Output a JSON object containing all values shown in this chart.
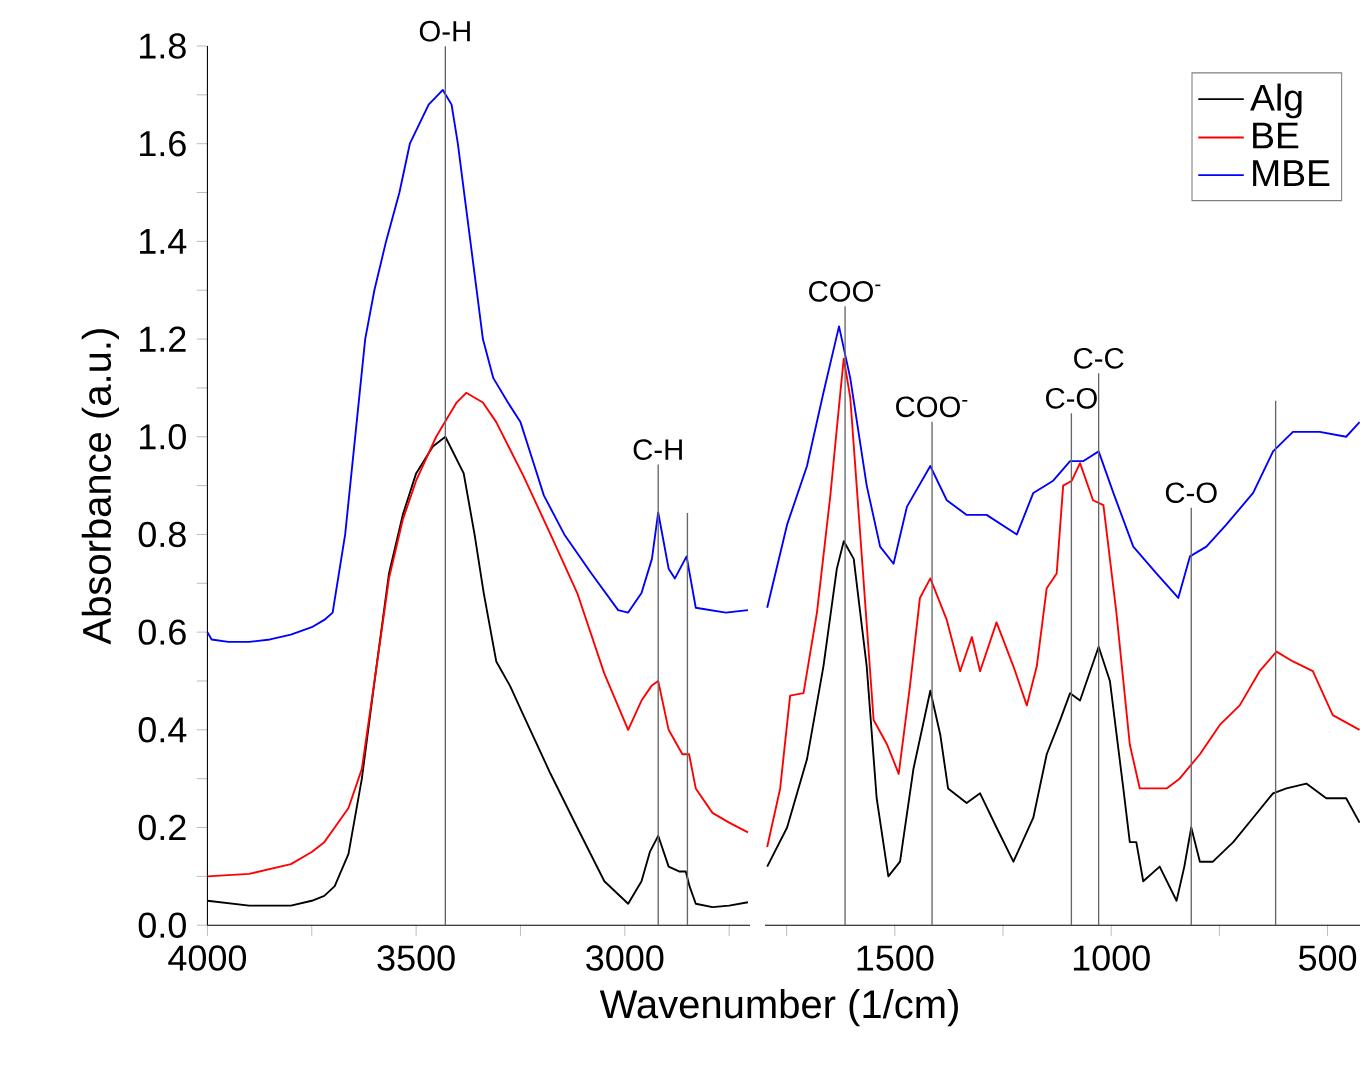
{
  "chart_data": [
    {
      "type": "line",
      "ylabel": "Absorbance (a.u.)",
      "xlabel": "Wavenumber (1/cm)",
      "xlim": [
        4000,
        2700
      ],
      "ylim": [
        0,
        1.8
      ],
      "xticks": [
        4000,
        {
          "value": 3750,
          "label": null
        },
        3500,
        {
          "value": 3250,
          "label": null
        },
        3000,
        {
          "value": 2750,
          "label": null
        }
      ],
      "yticks": [
        {
          "value": 0,
          "label": "0.0"
        },
        {
          "value": 0.1,
          "label": null
        },
        0.2,
        {
          "value": 0.3,
          "label": null
        },
        0.4,
        {
          "value": 0.5,
          "label": null
        },
        0.6,
        {
          "value": 0.7,
          "label": null
        },
        0.8,
        {
          "value": 0.9,
          "label": null
        },
        {
          "value": 1,
          "label": "1.0"
        },
        {
          "value": 1.1,
          "label": null
        },
        1.2,
        {
          "value": 1.3,
          "label": null
        },
        1.4,
        {
          "value": 1.5,
          "label": null
        },
        1.6,
        {
          "value": 1.7,
          "label": null
        },
        1.8
      ],
      "marker": "none",
      "grid": false,
      "legend": false,
      "series": [
        {
          "color": "#000000",
          "x": [
            4000,
            3950,
            3900,
            3850,
            3800,
            3750,
            3720,
            3695,
            3662,
            3630,
            3598,
            3565,
            3532,
            3500,
            3460,
            3430,
            3386,
            3360,
            3338,
            3308,
            3275,
            3243,
            3178,
            3114,
            3049,
            2992,
            2960,
            2940,
            2920,
            2895,
            2870,
            2854,
            2845,
            2830,
            2790,
            2750,
            2705
          ],
          "values": [
            0.05,
            0.045,
            0.04,
            0.04,
            0.04,
            0.05,
            0.06,
            0.08,
            0.146,
            0.3,
            0.51,
            0.72,
            0.84,
            0.925,
            0.98,
            1.0,
            0.925,
            0.8,
            0.68,
            0.54,
            0.49,
            0.43,
            0.31,
            0.2,
            0.09,
            0.044,
            0.09,
            0.15,
            0.183,
            0.12,
            0.11,
            0.11,
            0.08,
            0.044,
            0.037,
            0.04,
            0.047
          ]
        },
        {
          "color": "#ff0000",
          "x": [
            4000,
            3900,
            3800,
            3750,
            3720,
            3695,
            3662,
            3630,
            3598,
            3565,
            3532,
            3500,
            3452,
            3403,
            3380,
            3340,
            3308,
            3243,
            3178,
            3114,
            3049,
            2992,
            2960,
            2936,
            2920,
            2895,
            2862,
            2846,
            2830,
            2790,
            2750,
            2705
          ],
          "values": [
            0.1,
            0.105,
            0.125,
            0.15,
            0.17,
            0.2,
            0.24,
            0.32,
            0.51,
            0.71,
            0.83,
            0.91,
            1.0,
            1.07,
            1.09,
            1.07,
            1.03,
            0.92,
            0.8,
            0.68,
            0.515,
            0.4,
            0.46,
            0.49,
            0.5,
            0.4,
            0.35,
            0.35,
            0.28,
            0.23,
            0.21,
            0.19
          ]
        },
        {
          "color": "#0000ff",
          "x": [
            4000,
            3990,
            3950,
            3900,
            3850,
            3800,
            3750,
            3720,
            3700,
            3670,
            3646,
            3622,
            3600,
            3572,
            3540,
            3515,
            3470,
            3436,
            3415,
            3400,
            3385,
            3370,
            3355,
            3340,
            3315,
            3280,
            3250,
            3220,
            3194,
            3145,
            3080,
            3016,
            2992,
            2960,
            2935,
            2920,
            2895,
            2880,
            2852,
            2830,
            2758,
            2705
          ],
          "values": [
            0.6,
            0.585,
            0.58,
            0.58,
            0.585,
            0.595,
            0.61,
            0.625,
            0.64,
            0.8,
            1.0,
            1.2,
            1.3,
            1.4,
            1.5,
            1.6,
            1.68,
            1.71,
            1.68,
            1.6,
            1.5,
            1.4,
            1.3,
            1.2,
            1.12,
            1.07,
            1.03,
            0.95,
            0.88,
            0.8,
            0.72,
            0.645,
            0.64,
            0.68,
            0.75,
            0.845,
            0.73,
            0.71,
            0.755,
            0.65,
            0.64,
            0.645
          ]
        }
      ],
      "ref_lines": [
        {
          "axis": "x",
          "value": 3430,
          "label": "O-H"
        },
        {
          "axis": "x",
          "value": 2920,
          "label": "C-H"
        },
        {
          "axis": "x",
          "value": 2850
        }
      ]
    },
    {
      "type": "line",
      "xlim": [
        1800,
        425
      ],
      "ylim": [
        0,
        1.8
      ],
      "tick_labels": "x",
      "xticks": [
        {
          "value": 1750,
          "label": null
        },
        1500,
        {
          "value": 1250,
          "label": null
        },
        1000,
        {
          "value": 750,
          "label": null
        },
        500
      ],
      "marker": "none",
      "grid": false,
      "legend": "top right",
      "series": [
        {
          "name": "Alg",
          "color": "#000000",
          "x": [
            1795,
            1749,
            1703,
            1665,
            1634,
            1618,
            1595,
            1565,
            1542,
            1515,
            1488,
            1457,
            1418,
            1395,
            1377,
            1334,
            1303,
            1265,
            1226,
            1180,
            1149,
            1118,
            1095,
            1072,
            1029,
            1003,
            972,
            957,
            942,
            926,
            888,
            849,
            831,
            815,
            795,
            765,
            718,
            672,
            626,
            595,
            549,
            503,
            457,
            426
          ],
          "values": [
            0.12,
            0.2,
            0.34,
            0.53,
            0.73,
            0.786,
            0.75,
            0.53,
            0.26,
            0.1,
            0.13,
            0.32,
            0.48,
            0.39,
            0.28,
            0.25,
            0.27,
            0.2,
            0.13,
            0.22,
            0.35,
            0.42,
            0.475,
            0.46,
            0.57,
            0.5,
            0.28,
            0.17,
            0.17,
            0.09,
            0.12,
            0.05,
            0.12,
            0.2,
            0.13,
            0.13,
            0.17,
            0.22,
            0.27,
            0.28,
            0.29,
            0.26,
            0.26,
            0.21
          ]
        },
        {
          "name": "BE",
          "color": "#ff0000",
          "x": [
            1795,
            1765,
            1742,
            1711,
            1680,
            1649,
            1626,
            1618,
            1603,
            1580,
            1549,
            1518,
            1491,
            1465,
            1442,
            1418,
            1380,
            1349,
            1322,
            1303,
            1265,
            1226,
            1195,
            1172,
            1149,
            1126,
            1111,
            1091,
            1072,
            1042,
            1018,
            988,
            957,
            934,
            872,
            842,
            795,
            749,
            703,
            657,
            618,
            580,
            534,
            488,
            426
          ],
          "values": [
            0.16,
            0.28,
            0.47,
            0.475,
            0.64,
            0.88,
            1.09,
            1.16,
            1.08,
            0.8,
            0.42,
            0.37,
            0.31,
            0.49,
            0.67,
            0.71,
            0.625,
            0.52,
            0.59,
            0.52,
            0.62,
            0.53,
            0.45,
            0.53,
            0.69,
            0.72,
            0.9,
            0.91,
            0.946,
            0.87,
            0.86,
            0.64,
            0.37,
            0.28,
            0.28,
            0.3,
            0.35,
            0.41,
            0.45,
            0.52,
            0.56,
            0.54,
            0.52,
            0.43,
            0.4
          ]
        },
        {
          "name": "MBE",
          "color": "#0000ff",
          "x": [
            1795,
            1749,
            1703,
            1665,
            1629,
            1603,
            1565,
            1534,
            1503,
            1472,
            1418,
            1380,
            1334,
            1288,
            1218,
            1180,
            1134,
            1095,
            1065,
            1029,
            995,
            949,
            895,
            845,
            818,
            780,
            734,
            672,
            626,
            580,
            518,
            457,
            426
          ],
          "values": [
            0.65,
            0.82,
            0.94,
            1.09,
            1.226,
            1.12,
            0.9,
            0.775,
            0.74,
            0.857,
            0.94,
            0.87,
            0.84,
            0.84,
            0.8,
            0.885,
            0.91,
            0.95,
            0.95,
            0.97,
            0.885,
            0.775,
            0.72,
            0.67,
            0.755,
            0.775,
            0.82,
            0.885,
            0.97,
            1.01,
            1.01,
            1.0,
            1.03
          ]
        }
      ],
      "ref_lines": [
        {
          "axis": "x",
          "value": 1615,
          "label": "COO$^{-}$"
        },
        {
          "axis": "x",
          "value": 1414,
          "label": "COO$^{-}$"
        },
        {
          "axis": "x",
          "value": 1092,
          "label": "C-O"
        },
        {
          "axis": "x",
          "value": 1029,
          "label": "C-C"
        },
        {
          "axis": "x",
          "value": 815,
          "label": "C-O"
        },
        {
          "axis": "x",
          "value": 620
        }
      ]
    }
  ]
}
